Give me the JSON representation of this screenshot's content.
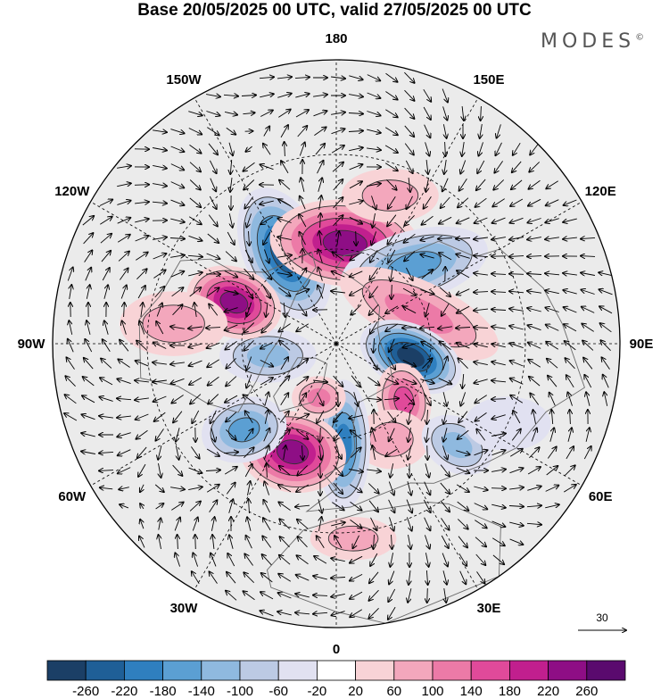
{
  "title": "Base 20/05/2025 00 UTC, valid 27/05/2025 00 UTC",
  "brand": "MODES",
  "brand_mark": "©",
  "colors": {
    "land_outline": "#6a6a6a",
    "grid": "#000000",
    "neutral_shade": "#e6e6e6"
  },
  "longitude_labels": [
    {
      "text": "180",
      "lon": 180
    },
    {
      "text": "150E",
      "lon": 150
    },
    {
      "text": "120E",
      "lon": 120
    },
    {
      "text": "90E",
      "lon": 90
    },
    {
      "text": "60E",
      "lon": 60
    },
    {
      "text": "30E",
      "lon": 30
    },
    {
      "text": "0",
      "lon": 0
    },
    {
      "text": "30W",
      "lon": -30
    },
    {
      "text": "60W",
      "lon": -60
    },
    {
      "text": "90W",
      "lon": -90
    },
    {
      "text": "120W",
      "lon": -120
    },
    {
      "text": "150W",
      "lon": -150
    }
  ],
  "reference_vector": {
    "label": "30"
  },
  "colorbar": {
    "labels": [
      "-260",
      "-220",
      "-180",
      "-140",
      "-100",
      "-60",
      "-20",
      "20",
      "60",
      "100",
      "140",
      "180",
      "220",
      "260"
    ],
    "colors": [
      "#1b3f66",
      "#1f5f97",
      "#2f7fbf",
      "#5b9fd3",
      "#8fb9df",
      "#bccae4",
      "#e1e1f1",
      "#ffffff",
      "#f8d3d6",
      "#f3a7bc",
      "#ec7aa7",
      "#e04a9a",
      "#c11f8e",
      "#8e0e85",
      "#5a0a6e"
    ]
  },
  "anomalies": [
    {
      "lon": -150,
      "lat": 57,
      "value": -250,
      "rx": 0.13,
      "ry": 0.075,
      "rot": 65
    },
    {
      "lon": 175,
      "lat": 58,
      "value": 220,
      "rx": 0.14,
      "ry": 0.08,
      "rot": 5
    },
    {
      "lon": 135,
      "lat": 55,
      "value": -150,
      "rx": 0.14,
      "ry": 0.065,
      "rot": -15
    },
    {
      "lon": 110,
      "lat": 62,
      "value": 120,
      "rx": 0.16,
      "ry": 0.06,
      "rot": 25
    },
    {
      "lon": 80,
      "lat": 66,
      "value": -260,
      "rx": 0.1,
      "ry": 0.06,
      "rot": 25
    },
    {
      "lon": 50,
      "lat": 62,
      "value": 160,
      "rx": 0.07,
      "ry": 0.05,
      "rot": 80
    },
    {
      "lon": 30,
      "lat": 55,
      "value": 80,
      "rx": 0.07,
      "ry": 0.055,
      "rot": 0
    },
    {
      "lon": 50,
      "lat": 40,
      "value": -120,
      "rx": 0.07,
      "ry": 0.05,
      "rot": 30
    },
    {
      "lon": 4,
      "lat": 58,
      "value": -180,
      "rx": 0.05,
      "ry": 0.12,
      "rot": 0
    },
    {
      "lon": -22,
      "lat": 53,
      "value": 230,
      "rx": 0.1,
      "ry": 0.075,
      "rot": 10
    },
    {
      "lon": -47,
      "lat": 50,
      "value": -170,
      "rx": 0.08,
      "ry": 0.06,
      "rot": -15
    },
    {
      "lon": -80,
      "lat": 68,
      "value": -130,
      "rx": 0.09,
      "ry": 0.05,
      "rot": 0
    },
    {
      "lon": -112,
      "lat": 55,
      "value": 220,
      "rx": 0.09,
      "ry": 0.065,
      "rot": 20
    },
    {
      "lon": -18,
      "lat": 72,
      "value": 120,
      "rx": 0.05,
      "ry": 0.04,
      "rot": 0
    },
    {
      "lon": 5,
      "lat": 28,
      "value": 80,
      "rx": 0.08,
      "ry": 0.04,
      "rot": 0
    },
    {
      "lon": -97,
      "lat": 38,
      "value": 60,
      "rx": 0.1,
      "ry": 0.06,
      "rot": 0
    },
    {
      "lon": 160,
      "lat": 40,
      "value": 70,
      "rx": 0.09,
      "ry": 0.05,
      "rot": 0
    },
    {
      "lon": 65,
      "lat": 30,
      "value": -50,
      "rx": 0.08,
      "ry": 0.05,
      "rot": 0
    }
  ]
}
